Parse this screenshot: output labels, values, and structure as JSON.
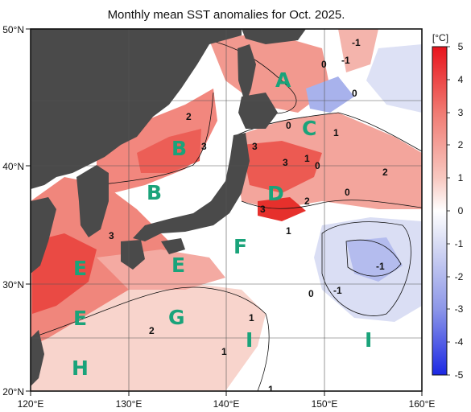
{
  "title": "Monthly mean SST anomalies for Oct. 2025.",
  "colorbar": {
    "unit": "[°C]",
    "ticks": [
      "5",
      "4",
      "3",
      "2",
      "1",
      "0",
      "-1",
      "-2",
      "-3",
      "-4",
      "-5"
    ],
    "colors": {
      "strong_warm": "#e8141c",
      "warm": "#f07a72",
      "mild_warm": "#f8c8c0",
      "neutral": "#ffffff",
      "mild_cool": "#d8dcf4",
      "cool": "#8c96e8",
      "strong_cool": "#1c28e4",
      "land": "#4a4a4a"
    }
  },
  "axes": {
    "lat_labels": [
      "50°N",
      "40°N",
      "30°N",
      "20°N"
    ],
    "lon_labels": [
      "120°E",
      "130°E",
      "140°E",
      "150°E",
      "160°E"
    ]
  },
  "regions": [
    "A",
    "B",
    "B",
    "C",
    "D",
    "E",
    "E",
    "E",
    "F",
    "G",
    "H",
    "I",
    "I"
  ],
  "contour_labels": [
    "-1",
    "-1",
    "0",
    "0",
    "0",
    "1",
    "2",
    "3",
    "3",
    "3",
    "1",
    "0",
    "2",
    "0",
    "2",
    "3",
    "1",
    "3",
    "-1",
    "0",
    "-1",
    "1",
    "2",
    "1",
    "1"
  ]
}
